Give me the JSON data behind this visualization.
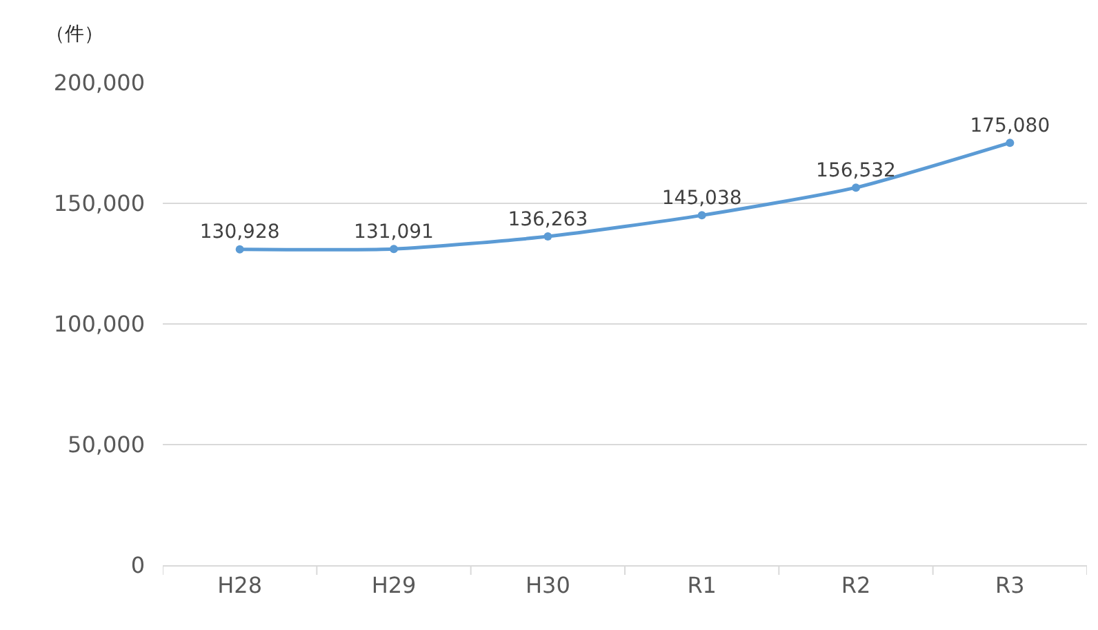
{
  "chart_data": {
    "type": "line",
    "ylabel": "（件）",
    "categories": [
      "H28",
      "H29",
      "H30",
      "R1",
      "R2",
      "R3"
    ],
    "series": [
      {
        "color": "#5b9bd5",
        "values": [
          130928,
          131091,
          136263,
          145038,
          156532,
          175080
        ],
        "value_labels": [
          "130,928",
          "131,091",
          "136,263",
          "145,038",
          "156,532",
          "175,080"
        ]
      }
    ],
    "ylim": [
      0,
      200000
    ],
    "yticks": [
      {
        "value": 0,
        "label": "0"
      },
      {
        "value": 50000,
        "label": "50,000"
      },
      {
        "value": 100000,
        "label": "100,000"
      },
      {
        "value": 150000,
        "label": "150,000"
      },
      {
        "value": 200000,
        "label": "200,000"
      }
    ],
    "grid": "y",
    "marker": "circle",
    "line_style": "solid"
  }
}
